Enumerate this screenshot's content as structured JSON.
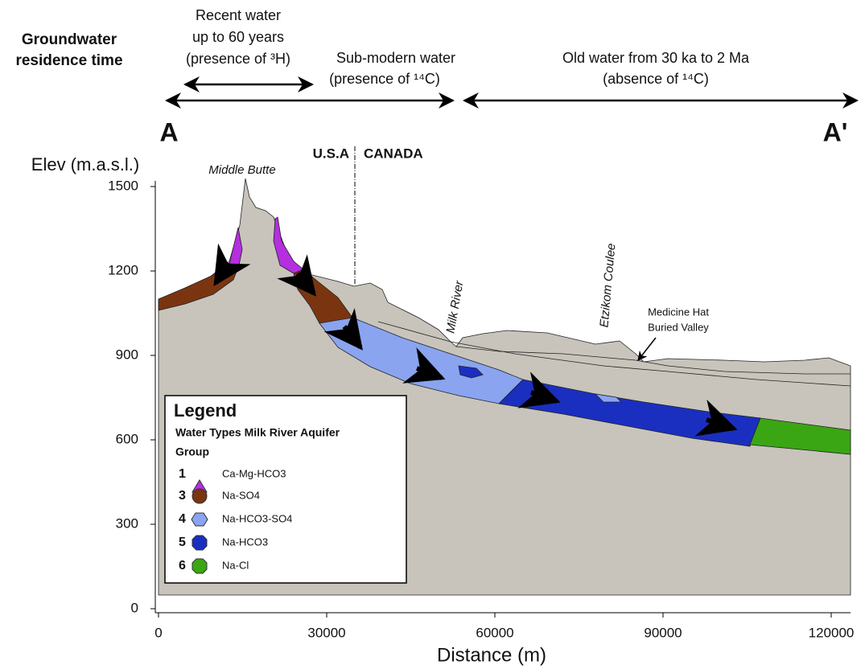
{
  "header": {
    "label": [
      "Groundwater",
      "residence time"
    ]
  },
  "periods": [
    {
      "lines": [
        "Recent water",
        "up to 60 years",
        "(presence of ³H)"
      ]
    },
    {
      "lines": [
        "Sub-modern water",
        "(presence of ¹⁴C)"
      ]
    },
    {
      "lines": [
        "Old water from 30 ka to 2 Ma",
        "(absence of ¹⁴C)"
      ]
    }
  ],
  "section": {
    "start": "A",
    "end": "A'"
  },
  "border": [
    "U.S.A",
    "CANADA"
  ],
  "features": {
    "butte": "Middle Butte",
    "river": "Milk River",
    "coulee": "Etzikom Coulee",
    "valley": [
      "Medicine Hat",
      "Buried Valley"
    ]
  },
  "axes": {
    "y_label": "Elev (m.a.s.l.)",
    "x_label": "Distance (m)",
    "yticks": [
      0,
      300,
      600,
      900,
      1200,
      1500
    ],
    "xticks": [
      0,
      30000,
      60000,
      90000,
      120000
    ]
  },
  "legend": {
    "title": "Legend",
    "subtitle": [
      "Water Types Milk River Aquifer",
      "Group"
    ],
    "items": [
      {
        "group": 1,
        "name": "Ca-Mg-HCO3"
      },
      {
        "group": 3,
        "name": "Na-SO4"
      },
      {
        "group": 4,
        "name": "Na-HCO3-SO4"
      },
      {
        "group": 5,
        "name": "Na-HCO3"
      },
      {
        "group": 6,
        "name": "Na-Cl"
      }
    ]
  }
}
